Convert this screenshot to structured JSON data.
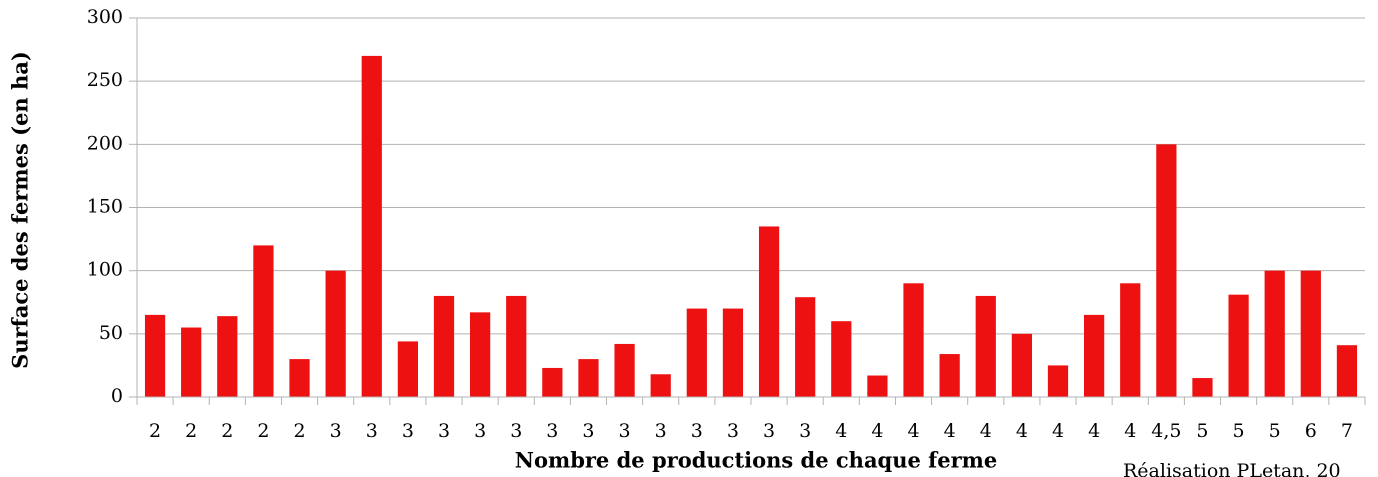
{
  "chart_data": {
    "type": "bar",
    "x_label": "Nombre de productions de chaque ferme",
    "y_label": "Surface des fermes (en ha)",
    "annotation": "Réalisation PLetan, 20",
    "categories": [
      "2",
      "2",
      "2",
      "2",
      "2",
      "3",
      "3",
      "3",
      "3",
      "3",
      "3",
      "3",
      "3",
      "3",
      "3",
      "3",
      "3",
      "3",
      "3",
      "4",
      "4",
      "4",
      "4",
      "4",
      "4",
      "4",
      "4",
      "4",
      "4,5",
      "5",
      "5",
      "5",
      "6",
      "7"
    ],
    "values": [
      65,
      55,
      64,
      120,
      30,
      100,
      270,
      44,
      80,
      67,
      80,
      23,
      30,
      42,
      18,
      70,
      70,
      135,
      79,
      60,
      17,
      90,
      34,
      80,
      50,
      25,
      65,
      90,
      200,
      15,
      81,
      100,
      100,
      41
    ],
    "color": "#ee1111",
    "ylim": [
      0,
      300
    ],
    "yticks": [
      0,
      50,
      100,
      150,
      200,
      250,
      300
    ],
    "grid": true
  }
}
